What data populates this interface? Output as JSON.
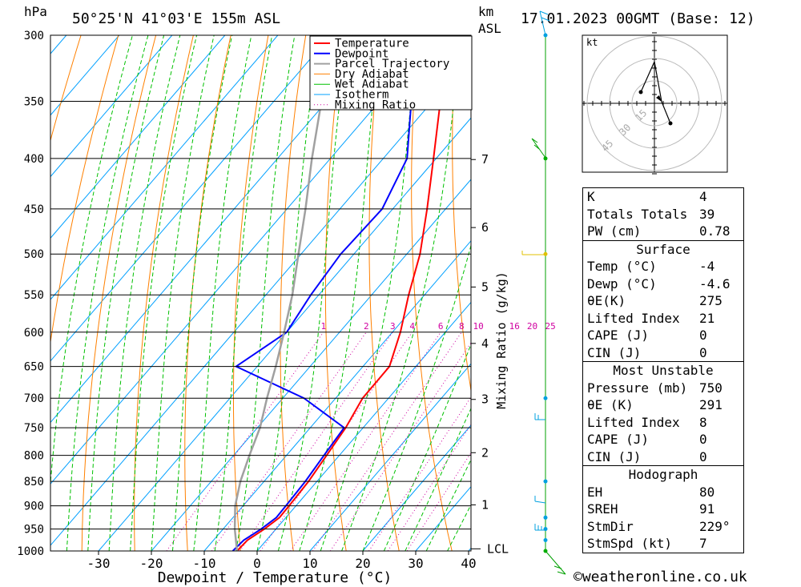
{
  "header": {
    "pressure_unit": "hPa",
    "location": "50°25'N  41°03'E  155m  ASL",
    "height_unit": "km",
    "height_unit2": "ASL",
    "datetime": "17.01.2023  00GMT  (Base: 12)"
  },
  "chart_data": {
    "type": "line",
    "title": "",
    "xlabel": "Dewpoint / Temperature (°C)",
    "ylabel": "hPa",
    "xlim": [
      -40,
      40
    ],
    "ylim": [
      1000,
      300
    ],
    "x_ticks": [
      -30,
      -20,
      -10,
      0,
      10,
      20,
      30,
      40
    ],
    "pressure_ticks": [
      300,
      350,
      400,
      450,
      500,
      550,
      600,
      650,
      700,
      750,
      800,
      850,
      900,
      950,
      1000
    ],
    "height_ticks": [
      {
        "km": "7",
        "p": 401
      },
      {
        "km": "6",
        "p": 470
      },
      {
        "km": "5",
        "p": 540
      },
      {
        "km": "4",
        "p": 616
      },
      {
        "km": "3",
        "p": 702
      },
      {
        "km": "2",
        "p": 795
      },
      {
        "km": "1",
        "p": 898
      }
    ],
    "lcl_label": "LCL",
    "lcl_p": 995,
    "mixing_ratio_label": "Mixing Ratio (g/kg)",
    "mixing_ratio_values": [
      "1",
      "2",
      "3",
      "4",
      "6",
      "8",
      "10",
      "16",
      "20",
      "25"
    ],
    "legend": [
      "Temperature",
      "Dewpoint",
      "Parcel Trajectory",
      "Dry Adiabat",
      "Wet Adiabat",
      "Isotherm",
      "Mixing Ratio"
    ],
    "legend_position": "top-right",
    "series": [
      {
        "name": "Temperature",
        "color": "#ff0000",
        "points": [
          [
            1000,
            -3.8
          ],
          [
            975,
            -3.6
          ],
          [
            950,
            -2.2
          ],
          [
            925,
            -1.2
          ],
          [
            900,
            -1.3
          ],
          [
            850,
            -1.6
          ],
          [
            800,
            -2.4
          ],
          [
            750,
            -3.3
          ],
          [
            700,
            -4.9
          ],
          [
            650,
            -5.0
          ],
          [
            600,
            -8.5
          ],
          [
            550,
            -13.0
          ],
          [
            500,
            -17.5
          ],
          [
            450,
            -23.5
          ],
          [
            400,
            -30.5
          ],
          [
            350,
            -38.5
          ],
          [
            300,
            -45.5
          ]
        ]
      },
      {
        "name": "Dewpoint",
        "color": "#0000ff",
        "points": [
          [
            1000,
            -4.6
          ],
          [
            975,
            -4.3
          ],
          [
            950,
            -2.8
          ],
          [
            925,
            -1.8
          ],
          [
            900,
            -1.9
          ],
          [
            850,
            -2.2
          ],
          [
            800,
            -2.9
          ],
          [
            750,
            -3.6
          ],
          [
            700,
            -16.0
          ],
          [
            650,
            -34.0
          ],
          [
            600,
            -30.0
          ],
          [
            550,
            -31.5
          ],
          [
            500,
            -32.5
          ],
          [
            450,
            -32.0
          ],
          [
            400,
            -35.5
          ],
          [
            350,
            -44.0
          ],
          [
            300,
            -50.0
          ]
        ]
      },
      {
        "name": "Parcel Trajectory",
        "color": "#a0a0a0",
        "points": [
          [
            1000,
            -3.8
          ],
          [
            950,
            -7.8
          ],
          [
            900,
            -11.5
          ],
          [
            850,
            -14.5
          ],
          [
            800,
            -17.0
          ],
          [
            750,
            -19.5
          ],
          [
            700,
            -23.0
          ],
          [
            650,
            -26.5
          ],
          [
            600,
            -30.5
          ],
          [
            550,
            -35.0
          ],
          [
            500,
            -40.5
          ],
          [
            450,
            -46.5
          ],
          [
            400,
            -53.5
          ],
          [
            350,
            -61.0
          ],
          [
            300,
            -70.0
          ]
        ]
      }
    ]
  },
  "hodograph": {
    "unit": "kt",
    "ring_labels": [
      "15",
      "30",
      "45"
    ]
  },
  "indices": [
    {
      "label": "K",
      "value": "4"
    },
    {
      "label": "Totals Totals",
      "value": "39"
    },
    {
      "label": "PW (cm)",
      "value": "0.78"
    }
  ],
  "surface": {
    "title": "Surface",
    "rows": [
      {
        "label": "Temp (°C)",
        "value": "-4"
      },
      {
        "label": "Dewp (°C)",
        "value": "-4.6"
      },
      {
        "label": "θE(K)",
        "value": "275"
      },
      {
        "label": "Lifted Index",
        "value": "21"
      },
      {
        "label": "CAPE (J)",
        "value": "0"
      },
      {
        "label": "CIN (J)",
        "value": "0"
      }
    ]
  },
  "most_unstable": {
    "title": "Most Unstable",
    "rows": [
      {
        "label": "Pressure (mb)",
        "value": "750"
      },
      {
        "label": "θE (K)",
        "value": "291"
      },
      {
        "label": "Lifted Index",
        "value": "8"
      },
      {
        "label": "CAPE (J)",
        "value": "0"
      },
      {
        "label": "CIN (J)",
        "value": "0"
      }
    ]
  },
  "hodograph_table": {
    "title": "Hodograph",
    "rows": [
      {
        "label": "EH",
        "value": "80"
      },
      {
        "label": "SREH",
        "value": "91"
      },
      {
        "label": "StmDir",
        "value": "229°"
      },
      {
        "label": "StmSpd (kt)",
        "value": "7"
      }
    ]
  },
  "copyright": "©weatheronline.co.uk",
  "colors": {
    "temperature": "#ff0000",
    "dewpoint": "#0000ff",
    "parcel": "#a0a0a0",
    "dry_adiabat": "#ff8000",
    "wet_adiabat": "#00c000",
    "isotherm": "#00a0ff",
    "mixing_ratio": "#d000a0"
  }
}
